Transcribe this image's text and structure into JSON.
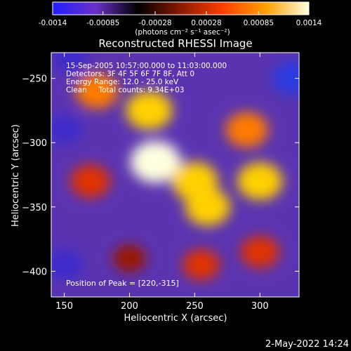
{
  "colorbar": {
    "tick_labels": [
      "-0.0014",
      "-0.00085",
      "-0.00028",
      "0.00028",
      "0.00085",
      "0.0014"
    ],
    "tick_values": [
      -0.0014,
      -0.00085,
      -0.00028,
      0.00028,
      0.00085,
      0.0014
    ],
    "range": [
      -0.0014,
      0.0014
    ],
    "units_label": "(photons cm⁻² s⁻¹ asec⁻²)",
    "palette": [
      "#2020ff",
      "#6a30c8",
      "#000000",
      "#8a1a00",
      "#ff4000",
      "#ffa000",
      "#ffffe0"
    ]
  },
  "chart_data": {
    "type": "heatmap",
    "title": "Reconstructed RHESSI Image",
    "xlabel": "Heliocentric X (arcsec)",
    "ylabel": "Heliocentric Y (arcsec)",
    "xlim": [
      140,
      330
    ],
    "ylim": [
      -420,
      -230
    ],
    "x_ticks": [
      150,
      200,
      250,
      300
    ],
    "y_ticks": [
      -250,
      -300,
      -350,
      -400
    ],
    "x_tick_labels": [
      "150",
      "200",
      "250",
      "300"
    ],
    "y_tick_labels": [
      "−250",
      "−300",
      "−350",
      "−400"
    ],
    "info_lines": [
      "15-Sep-2005 10:57:00.000 to 11:03:00.000",
      "Detectors: 3F 4F 5F 6F 7F 8F, Att 0",
      "Energy Range: 12.0 - 25.0 keV",
      "Clean     Total counts: 9.34E+03"
    ],
    "peak_label": "Position of Peak = [220,-315]",
    "peak_position": [
      220,
      -315
    ],
    "sources": [
      {
        "x": 220,
        "y": -315,
        "peak": 1.0
      },
      {
        "x": 215,
        "y": -275,
        "peak": 0.85
      },
      {
        "x": 175,
        "y": -260,
        "peak": 0.7
      },
      {
        "x": 250,
        "y": -330,
        "peak": 0.85
      },
      {
        "x": 260,
        "y": -350,
        "peak": 0.8
      },
      {
        "x": 300,
        "y": -330,
        "peak": 0.8
      },
      {
        "x": 290,
        "y": -290,
        "peak": 0.7
      },
      {
        "x": 170,
        "y": -330,
        "peak": 0.6
      },
      {
        "x": 300,
        "y": -385,
        "peak": 0.55
      },
      {
        "x": 255,
        "y": -395,
        "peak": 0.5
      },
      {
        "x": 200,
        "y": -390,
        "peak": 0.35
      },
      {
        "x": 325,
        "y": -250,
        "peak": -0.6
      },
      {
        "x": 150,
        "y": -395,
        "peak": -0.5
      },
      {
        "x": 150,
        "y": -290,
        "peak": -0.45
      },
      {
        "x": 155,
        "y": -235,
        "peak": -0.4
      }
    ]
  },
  "footer": {
    "timestamp": "2-May-2022 14:24"
  }
}
